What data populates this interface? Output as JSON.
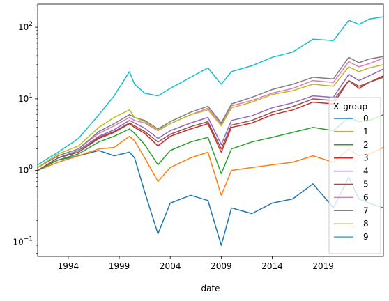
{
  "chart_data": {
    "type": "line",
    "xlabel": "date",
    "ylabel": "",
    "yscale": "log",
    "xlim": [
      1991.0,
      2024.9
    ],
    "ylim": [
      0.063,
      210
    ],
    "x_ticks": [
      1994,
      1999,
      2004,
      2009,
      2014,
      2019
    ],
    "y_ticks": [
      {
        "value": 0.1,
        "base": "10",
        "exp": "−1"
      },
      {
        "value": 1,
        "base": "10",
        "exp": "0"
      },
      {
        "value": 10,
        "base": "10",
        "exp": "1"
      },
      {
        "value": 100,
        "base": "10",
        "exp": "2"
      }
    ],
    "grid": false,
    "legend": {
      "title": "X_group",
      "placement": "lower-right"
    },
    "x": [
      1991.0,
      1993.0,
      1995.0,
      1997.0,
      1998.5,
      2000.0,
      2000.5,
      2001.5,
      2002.8,
      2004.0,
      2006.0,
      2007.7,
      2009.0,
      2010.0,
      2012.0,
      2014.0,
      2016.0,
      2018.0,
      2020.0,
      2021.5,
      2022.5,
      2023.5,
      2024.9
    ],
    "series": [
      {
        "name": "0",
        "color": "#1f77b4",
        "values": [
          1.0,
          1.4,
          1.6,
          1.9,
          1.6,
          1.8,
          1.5,
          0.5,
          0.13,
          0.35,
          0.45,
          0.38,
          0.09,
          0.3,
          0.25,
          0.35,
          0.4,
          0.65,
          0.3,
          0.8,
          0.4,
          0.35,
          0.3
        ]
      },
      {
        "name": "1",
        "color": "#ff7f0e",
        "values": [
          1.0,
          1.3,
          1.6,
          2.0,
          2.1,
          3.0,
          2.6,
          1.5,
          0.7,
          1.1,
          1.5,
          1.8,
          0.45,
          1.0,
          1.1,
          1.2,
          1.3,
          1.6,
          1.3,
          2.0,
          1.6,
          1.7,
          2.1
        ]
      },
      {
        "name": "2",
        "color": "#2ca02c",
        "values": [
          1.0,
          1.4,
          1.7,
          2.5,
          3.0,
          3.8,
          3.3,
          2.3,
          1.2,
          1.9,
          2.5,
          2.9,
          0.9,
          2.0,
          2.5,
          2.9,
          3.4,
          4.0,
          3.6,
          5.5,
          4.8,
          5.0,
          6.0
        ]
      },
      {
        "name": "3",
        "color": "#d62728",
        "values": [
          1.0,
          1.5,
          1.8,
          2.8,
          3.4,
          4.5,
          4.0,
          3.3,
          2.2,
          3.0,
          3.8,
          4.5,
          1.8,
          4.0,
          4.6,
          6.0,
          7.0,
          9.0,
          8.5,
          18.0,
          14.0,
          17.0,
          21.0
        ]
      },
      {
        "name": "4",
        "color": "#9467bd",
        "values": [
          1.0,
          1.5,
          1.9,
          3.0,
          3.7,
          5.0,
          4.6,
          3.9,
          2.8,
          3.6,
          4.6,
          5.5,
          2.3,
          5.0,
          5.8,
          7.5,
          8.8,
          11.0,
          10.5,
          22.0,
          18.0,
          21.0,
          26.0
        ]
      },
      {
        "name": "5",
        "color": "#8c564b",
        "values": [
          1.0,
          1.5,
          1.8,
          2.9,
          3.5,
          4.6,
          4.2,
          3.5,
          2.5,
          3.2,
          4.1,
          4.8,
          2.0,
          4.3,
          5.0,
          6.5,
          7.8,
          10.0,
          9.5,
          18.0,
          15.0,
          17.0,
          20.0
        ]
      },
      {
        "name": "6",
        "color": "#e377c2",
        "values": [
          1.1,
          1.6,
          2.0,
          3.3,
          4.2,
          5.5,
          5.0,
          4.6,
          3.6,
          4.5,
          6.0,
          7.4,
          4.4,
          8.0,
          9.5,
          12.0,
          14.0,
          18.0,
          17.0,
          33.0,
          28.0,
          31.0,
          37.0
        ]
      },
      {
        "name": "7",
        "color": "#7f7f7f",
        "values": [
          1.1,
          1.6,
          2.0,
          3.5,
          4.5,
          6.0,
          5.5,
          5.0,
          3.8,
          4.8,
          6.5,
          7.9,
          4.6,
          8.5,
          10.5,
          13.5,
          16.0,
          20.0,
          19.0,
          38.0,
          32.0,
          36.0,
          39.0
        ]
      },
      {
        "name": "8",
        "color": "#bcbd22",
        "values": [
          1.1,
          1.7,
          2.2,
          4.0,
          5.5,
          7.0,
          5.5,
          4.8,
          3.7,
          4.5,
          6.0,
          7.0,
          4.2,
          7.5,
          9.0,
          11.5,
          13.0,
          16.0,
          15.0,
          28.0,
          24.0,
          27.0,
          30.0
        ]
      },
      {
        "name": "9",
        "color": "#17becf",
        "values": [
          1.2,
          1.8,
          2.8,
          6.0,
          11.0,
          24.0,
          16.0,
          12.0,
          11.0,
          14.0,
          20.0,
          27.0,
          16.0,
          24.0,
          29.0,
          38.0,
          45.0,
          68.0,
          65.0,
          125.0,
          110.0,
          130.0,
          140.0
        ]
      }
    ]
  }
}
